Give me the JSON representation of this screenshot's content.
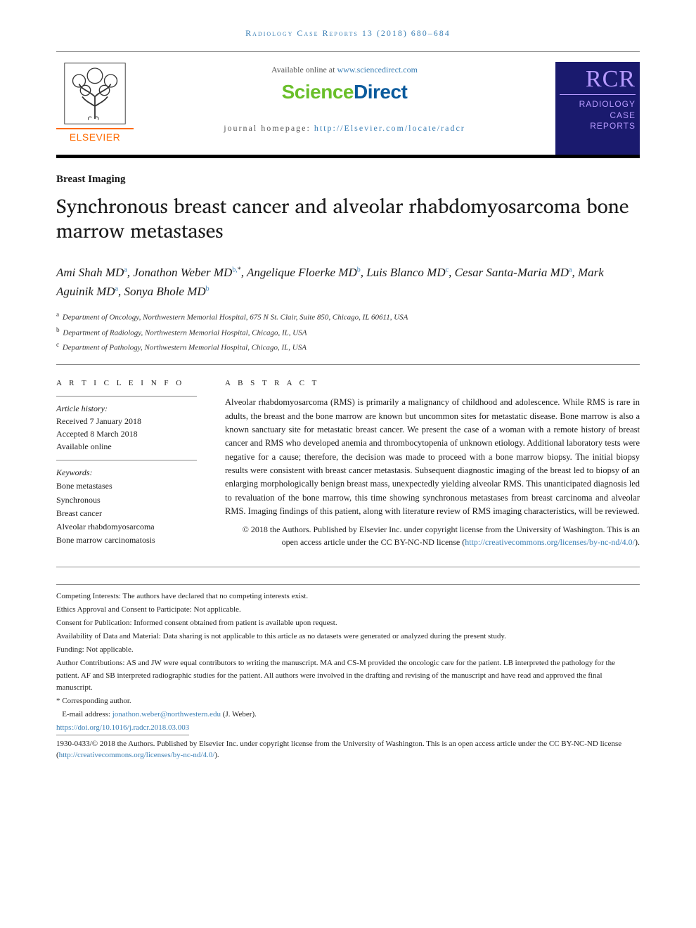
{
  "runningHead": "Radiology Case Reports 13 (2018) 680–684",
  "header": {
    "elsevierWord": "ELSEVIER",
    "availPrefix": "Available online at ",
    "availLink": "www.sciencedirect.com",
    "sdScience": "Science",
    "sdDirect": "Direct",
    "jhLabel": "journal homepage: ",
    "jhLink": "http://Elsevier.com/locate/radcr",
    "rcrBig": "RCR",
    "rcrLine1": "RADIOLOGY",
    "rcrLine2": "CASE",
    "rcrLine3": "REPORTS"
  },
  "category": "Breast Imaging",
  "title": "Synchronous breast cancer and alveolar rhabdomyosarcoma bone marrow metastases",
  "authors": [
    {
      "name": "Ami Shah MD",
      "aff": "a",
      "corr": false,
      "trail": ", "
    },
    {
      "name": "Jonathon Weber MD",
      "aff": "b,",
      "corr": true,
      "trail": ", "
    },
    {
      "name": "Angelique Floerke MD",
      "aff": "b",
      "corr": false,
      "trail": ", "
    },
    {
      "name": "Luis Blanco MD",
      "aff": "c",
      "corr": false,
      "trail": ", "
    },
    {
      "name": "Cesar Santa-Maria MD",
      "aff": "a",
      "corr": false,
      "trail": ", "
    },
    {
      "name": "Mark Aguinik MD",
      "aff": "a",
      "corr": false,
      "trail": ", "
    },
    {
      "name": "Sonya Bhole MD",
      "aff": "b",
      "corr": false,
      "trail": ""
    }
  ],
  "affiliations": [
    {
      "sup": "a",
      "text": "Department of Oncology, Northwestern Memorial Hospital, 675 N St. Clair, Suite 850, Chicago, IL 60611, USA"
    },
    {
      "sup": "b",
      "text": "Department of Radiology, Northwestern Memorial Hospital, Chicago, IL, USA"
    },
    {
      "sup": "c",
      "text": "Department of Pathology, Northwestern Memorial Hospital, Chicago, IL, USA"
    }
  ],
  "articleInfo": {
    "head": "A R T I C L E  I N F O",
    "historyLabel": "Article history:",
    "received": "Received 7 January 2018",
    "accepted": "Accepted 8 March 2018",
    "online": "Available online"
  },
  "keywords": {
    "label": "Keywords:",
    "list": [
      "Bone metastases",
      "Synchronous",
      "Breast cancer",
      "Alveolar rhabdomyosarcoma",
      "Bone marrow carcinomatosis"
    ]
  },
  "abstract": {
    "head": "A B S T R A C T",
    "text": "Alveolar rhabdomyosarcoma (RMS) is primarily a malignancy of childhood and adolescence. While RMS is rare in adults, the breast and the bone marrow are known but uncommon sites for metastatic disease. Bone marrow is also a known sanctuary site for metastatic breast cancer. We present the case of a woman with a remote history of breast cancer and RMS who developed anemia and thrombocytopenia of unknown etiology. Additional laboratory tests were negative for a cause; therefore, the decision was made to proceed with a bone marrow biopsy. The initial biopsy results were consistent with breast cancer metastasis. Subsequent diagnostic imaging of the breast led to biopsy of an enlarging morphologically benign breast mass, unexpectedly yielding alveolar RMS. This unanticipated diagnosis led to revaluation of the bone marrow, this time showing synchronous metastases from breast carcinoma and alveolar RMS. Imaging findings of this patient, along with literature review of RMS imaging characteristics, will be reviewed.",
    "copyPrefix": "© 2018 the Authors. Published by Elsevier Inc. under copyright license from the University of Washington. This is an open access article under the CC BY-NC-ND license (",
    "copyLink": "http://creativecommons.org/licenses/by-nc-nd/4.0/",
    "copySuffix": ")."
  },
  "footnotes": {
    "items": [
      "Competing Interests: The authors have declared that no competing interests exist.",
      "Ethics Approval and Consent to Participate: Not applicable.",
      "Consent for Publication: Informed consent obtained from patient is available upon request.",
      "Availability of Data and Material: Data sharing is not applicable to this article as no datasets were generated or analyzed during the present study.",
      "Funding: Not applicable.",
      "Author Contributions: AS and JW were equal contributors to writing the manuscript. MA and CS-M provided the oncologic care for the patient. LB interpreted the pathology for the patient. AF and SB interpreted radiographic studies for the patient. All authors were involved in the drafting and revising of the manuscript and have read and approved the final manuscript."
    ],
    "corrLabel": "* Corresponding author.",
    "emailLabel": "E-mail address: ",
    "email": "jonathon.weber@northwestern.edu",
    "emailSuffix": " (J. Weber).",
    "doi": "https://doi.org/10.1016/j.radcr.2018.03.003",
    "issn": "1930-0433/© 2018 the Authors. Published by Elsevier Inc. under copyright license from the University of Washington. This is an open access article under the CC BY-NC-ND license (",
    "issnLink": "http://creativecommons.org/licenses/by-nc-nd/4.0/",
    "issnSuffix": ")."
  },
  "colors": {
    "link": "#3b7fb5",
    "elsevierOrange": "#ff6a00",
    "sdGreen": "#6abf2a",
    "sdBlue": "#0a5a9c",
    "rcrBg": "#1a1a6e",
    "rcrText": "#b79bff",
    "ruleGray": "#888888"
  },
  "typography": {
    "bodyFont": "Georgia, serif",
    "titleSize": 28,
    "authorsFont": "cursive / handwritten",
    "authorsSize": 17,
    "abstractSize": 12.5,
    "footnoteSize": 11
  }
}
